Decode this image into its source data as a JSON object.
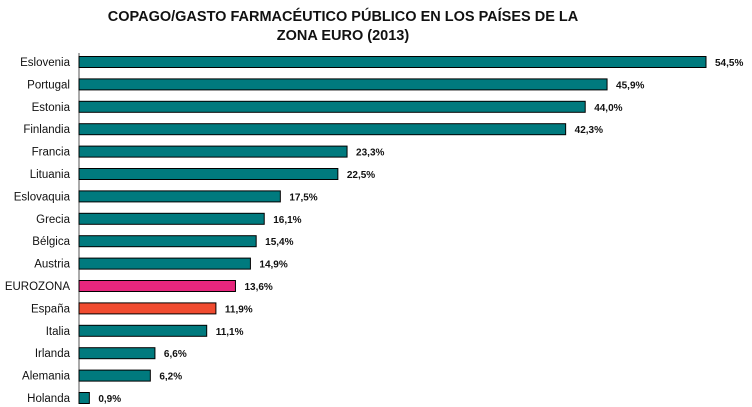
{
  "chart_data": {
    "type": "bar",
    "orientation": "horizontal",
    "title_lines": [
      "COPAGO/GASTO FARMACÉUTICO PÚBLICO EN LOS PAÍSES DE LA",
      "ZONA EURO (2013)"
    ],
    "categories": [
      "Eslovenia",
      "Portugal",
      "Estonia",
      "Finlandia",
      "Francia",
      "Lituania",
      "Eslovaquia",
      "Grecia",
      "Bélgica",
      "Austria",
      "EUROZONA",
      "España",
      "Italia",
      "Irlanda",
      "Alemania",
      "Holanda"
    ],
    "values": [
      54.5,
      45.9,
      44.0,
      42.3,
      23.3,
      22.5,
      17.5,
      16.1,
      15.4,
      14.9,
      13.6,
      11.9,
      11.1,
      6.6,
      6.2,
      0.9
    ],
    "value_labels": [
      "54,5%",
      "45,9%",
      "44,0%",
      "42,3%",
      "23,3%",
      "22,5%",
      "17,5%",
      "16,1%",
      "15,4%",
      "14,9%",
      "13,6%",
      "11,9%",
      "11,1%",
      "6,6%",
      "6,2%",
      "0,9%"
    ],
    "colors": [
      "#007a7e",
      "#007a7e",
      "#007a7e",
      "#007a7e",
      "#007a7e",
      "#007a7e",
      "#007a7e",
      "#007a7e",
      "#007a7e",
      "#007a7e",
      "#e8267d",
      "#f04b30",
      "#007a7e",
      "#007a7e",
      "#007a7e",
      "#007a7e"
    ],
    "xlim": [
      0,
      60
    ],
    "grid": false,
    "legend": "none"
  }
}
